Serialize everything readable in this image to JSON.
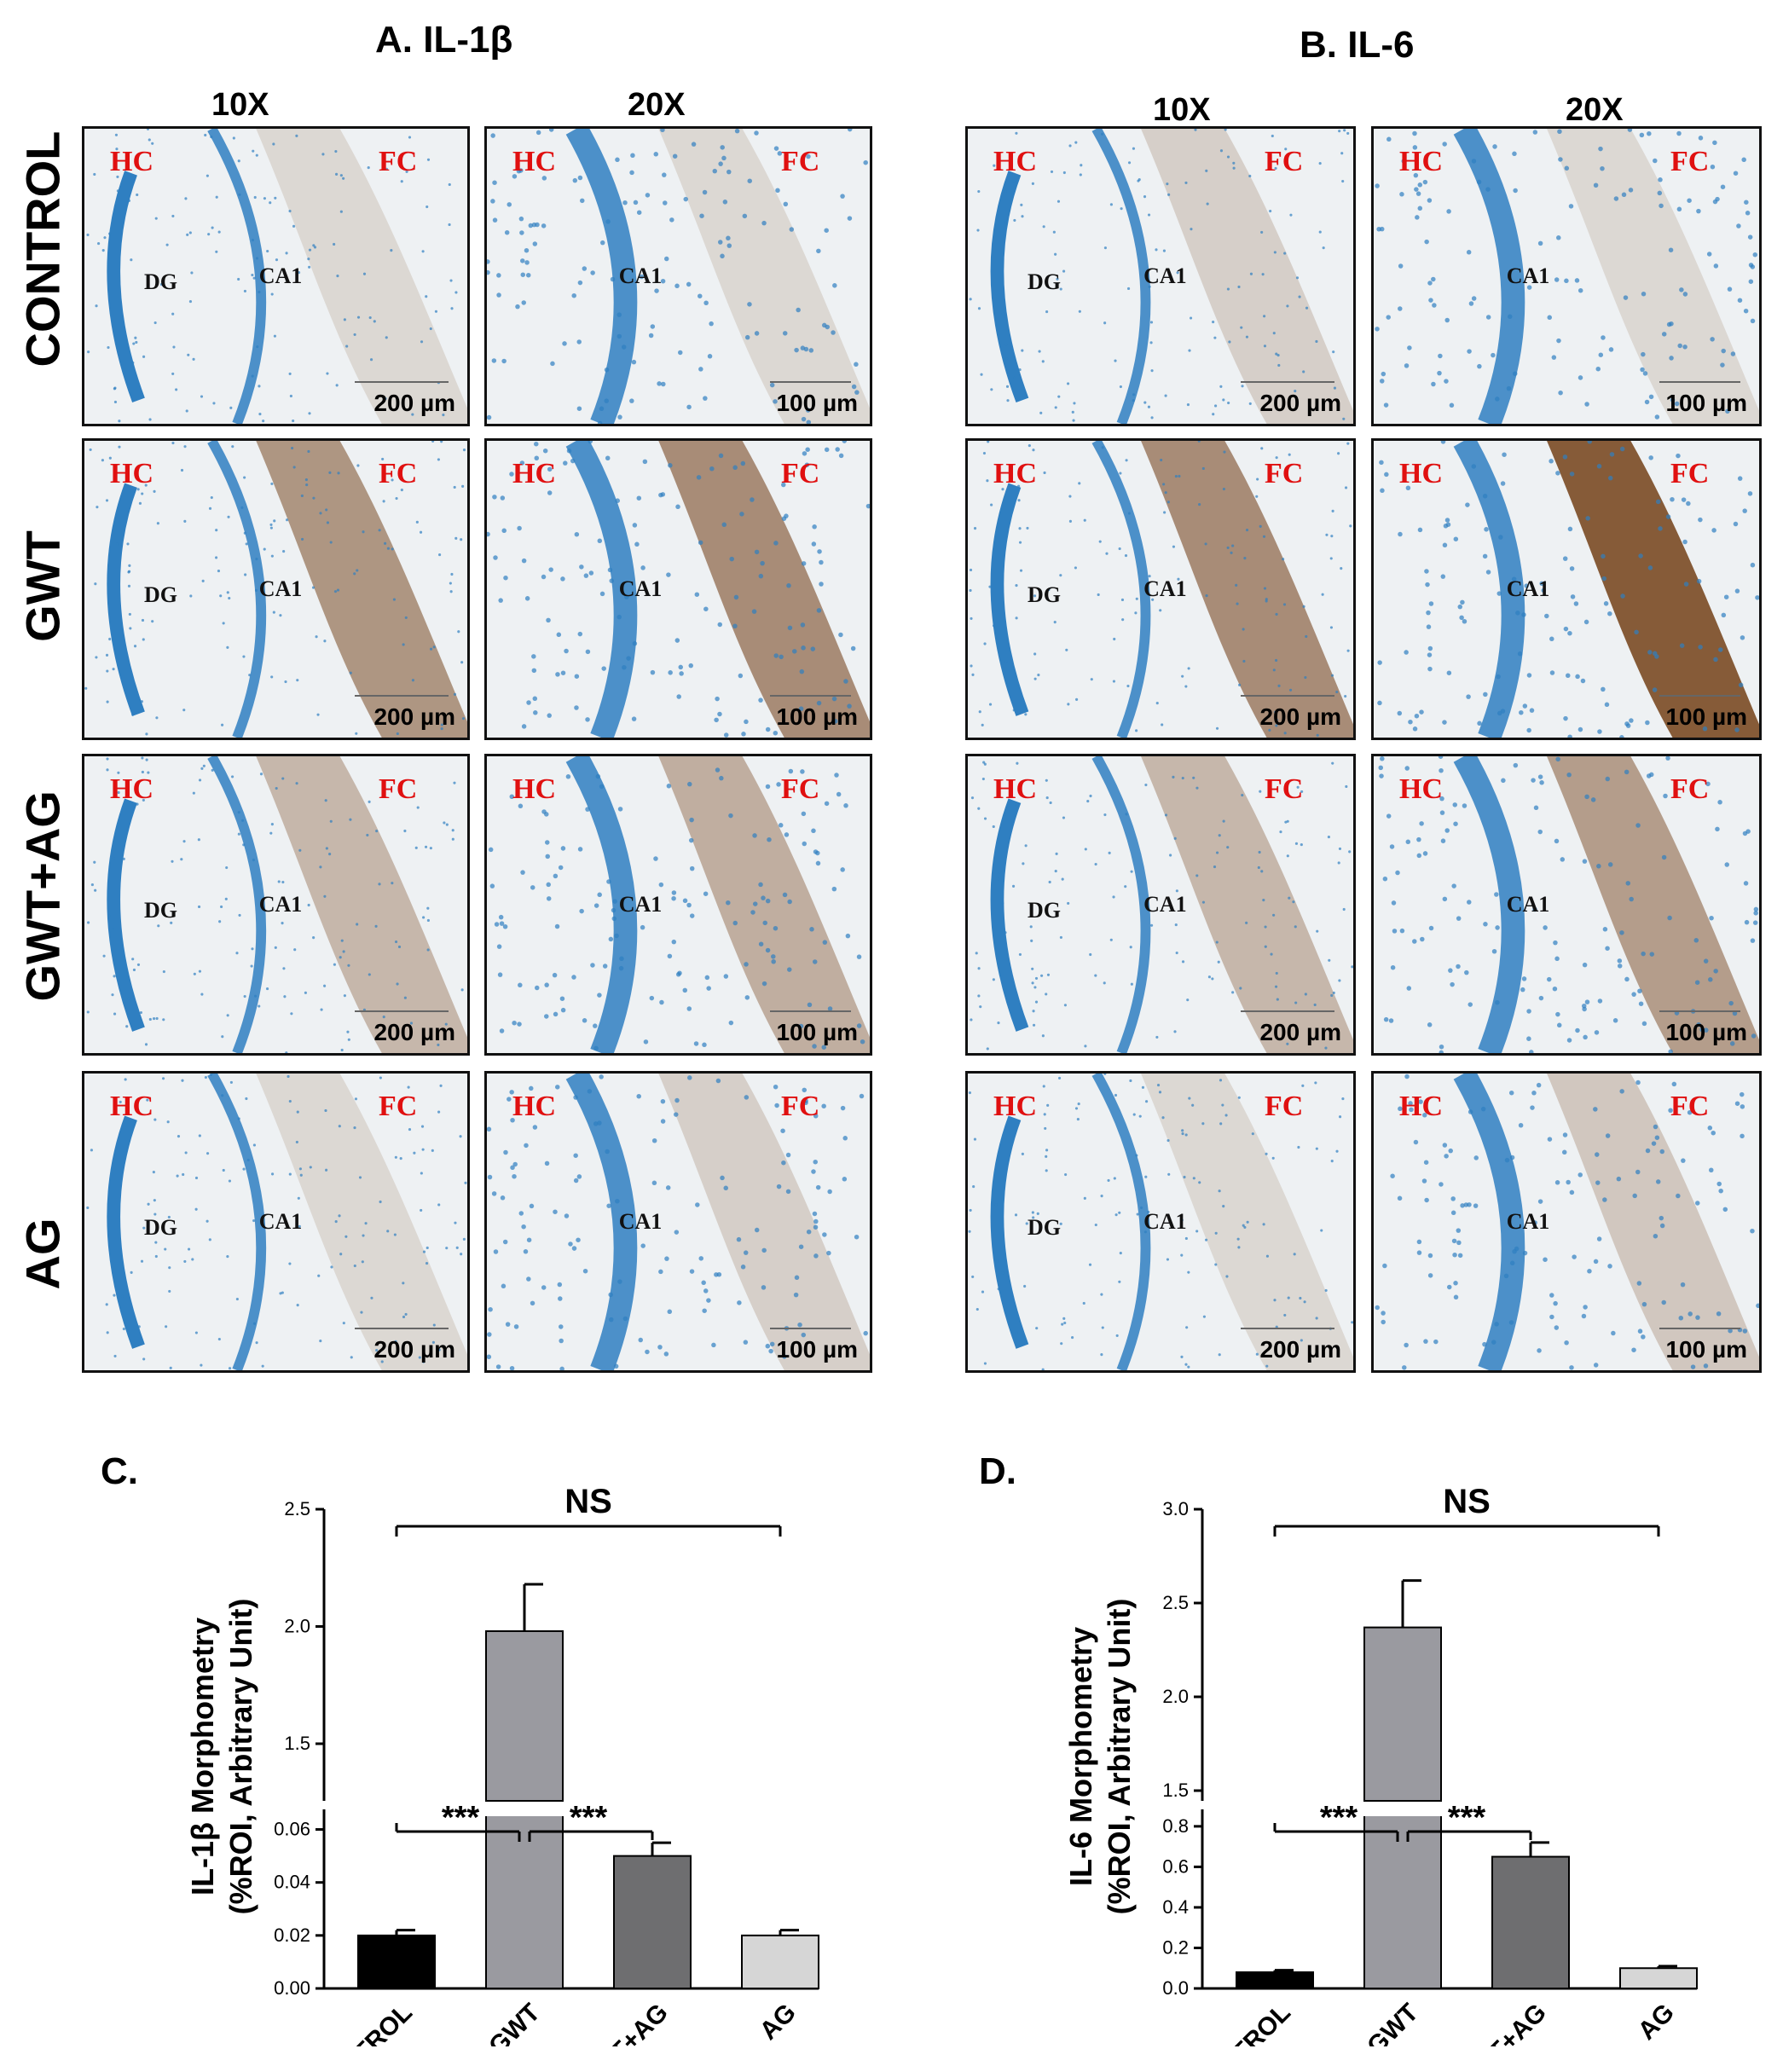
{
  "panels": {
    "A": {
      "title": "A. IL-1β"
    },
    "B": {
      "title": "B. IL-6"
    }
  },
  "magnifications": [
    "10X",
    "20X"
  ],
  "rows": [
    "CONTROL",
    "GWT",
    "GWT+AG",
    "AG"
  ],
  "tile_labels": {
    "hc": "HC",
    "fc": "FC",
    "dg": "DG",
    "ca1": "CA1"
  },
  "scale_bars": {
    "ten_x": "200 µm",
    "twenty_x": "100 µm"
  },
  "stain_colors": {
    "tissue_bg": "#eef1f3",
    "nuclei": "#2f7fc1",
    "brown": "#7a4a24",
    "label_red": "#e01010"
  },
  "chart_data": [
    {
      "panel_letter": "C.",
      "type": "bar",
      "categories": [
        "CONTROL",
        "GWT",
        "GWT+AG",
        "AG"
      ],
      "values": [
        0.02,
        1.98,
        0.05,
        0.02
      ],
      "errors": [
        0.002,
        0.2,
        0.005,
        0.002
      ],
      "colors": [
        "#000000",
        "#9a9aa0",
        "#6e6e70",
        "#d6d6d6"
      ],
      "ylabel_line1": "IL-1β Morphometry",
      "ylabel_line2": "(%ROI, Arbitrary Unit)",
      "axis_break": true,
      "lower_range": [
        0,
        0.065
      ],
      "lower_ticks": [
        "0.00",
        "0.02",
        "0.04",
        "0.06"
      ],
      "upper_range": [
        1.3,
        2.5
      ],
      "upper_ticks": [
        "1.5",
        "2.0",
        "2.5"
      ],
      "annotations": {
        "ns": "NS",
        "sig1": "***",
        "sig2": "***"
      }
    },
    {
      "panel_letter": "D.",
      "type": "bar",
      "categories": [
        "CONTROL",
        "GWT",
        "GWT+AG",
        "AG"
      ],
      "values": [
        0.08,
        2.37,
        0.65,
        0.1
      ],
      "errors": [
        0.01,
        0.25,
        0.07,
        0.01
      ],
      "colors": [
        "#000000",
        "#9a9aa0",
        "#6e6e70",
        "#d6d6d6"
      ],
      "ylabel_line1": "IL-6 Morphometry",
      "ylabel_line2": "(%ROI, Arbitrary Unit)",
      "axis_break": true,
      "lower_range": [
        0,
        0.85
      ],
      "lower_ticks": [
        "0.0",
        "0.2",
        "0.4",
        "0.6",
        "0.8"
      ],
      "upper_range": [
        1.5,
        3.0
      ],
      "upper_ticks": [
        "1.5",
        "2.0",
        "2.5",
        "3.0"
      ],
      "annotations": {
        "ns": "NS",
        "sig1": "***",
        "sig2": "***"
      }
    }
  ]
}
